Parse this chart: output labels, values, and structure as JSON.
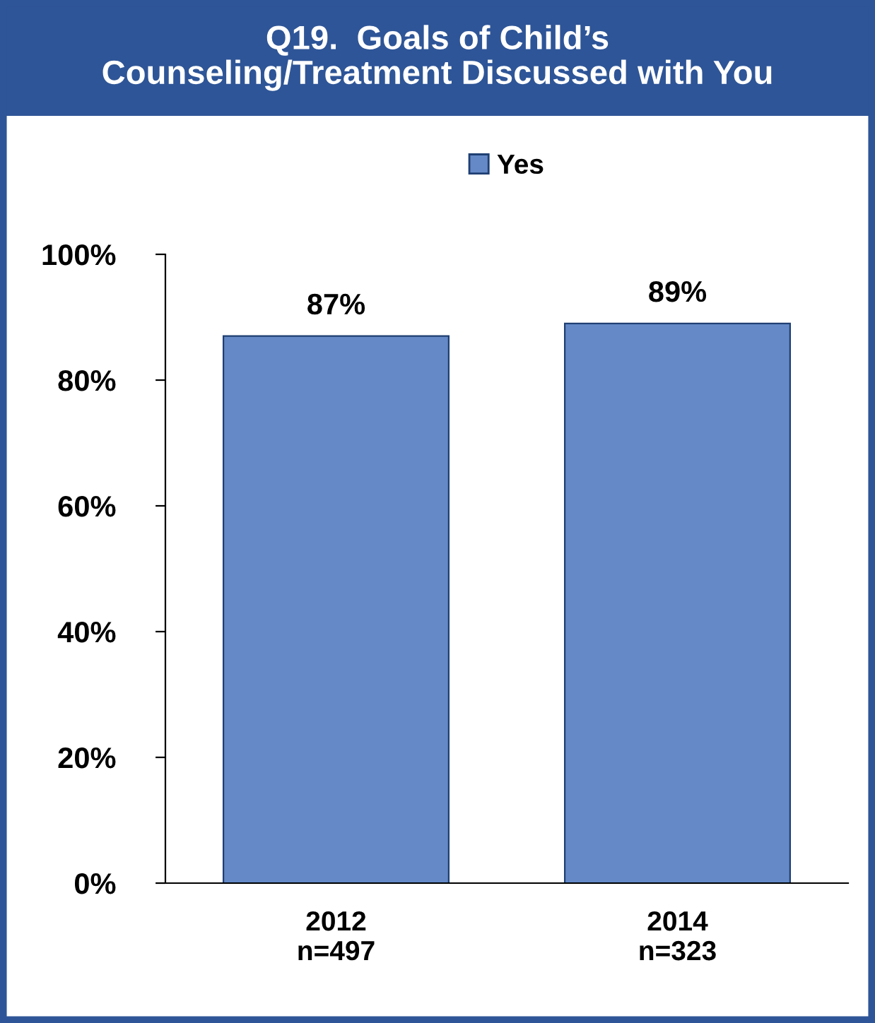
{
  "chart_data": {
    "type": "bar",
    "title": "Q19.  Goals of Child’s\nCounseling/Treatment Discussed with You",
    "categories": [
      "2012\nn=497",
      "2014\nn=323"
    ],
    "series": [
      {
        "name": "Yes",
        "color": "#6489c6",
        "values": [
          87,
          89
        ],
        "value_labels": [
          "87%",
          "89%"
        ]
      }
    ],
    "ylim": [
      0,
      100
    ],
    "yticks": [
      {
        "value": 0,
        "label": "0%"
      },
      {
        "value": 20,
        "label": "20%"
      },
      {
        "value": 40,
        "label": "40%"
      },
      {
        "value": 60,
        "label": "60%"
      },
      {
        "value": 80,
        "label": "80%"
      },
      {
        "value": 100,
        "label": "100%"
      }
    ],
    "grid": false,
    "legend": "top"
  }
}
